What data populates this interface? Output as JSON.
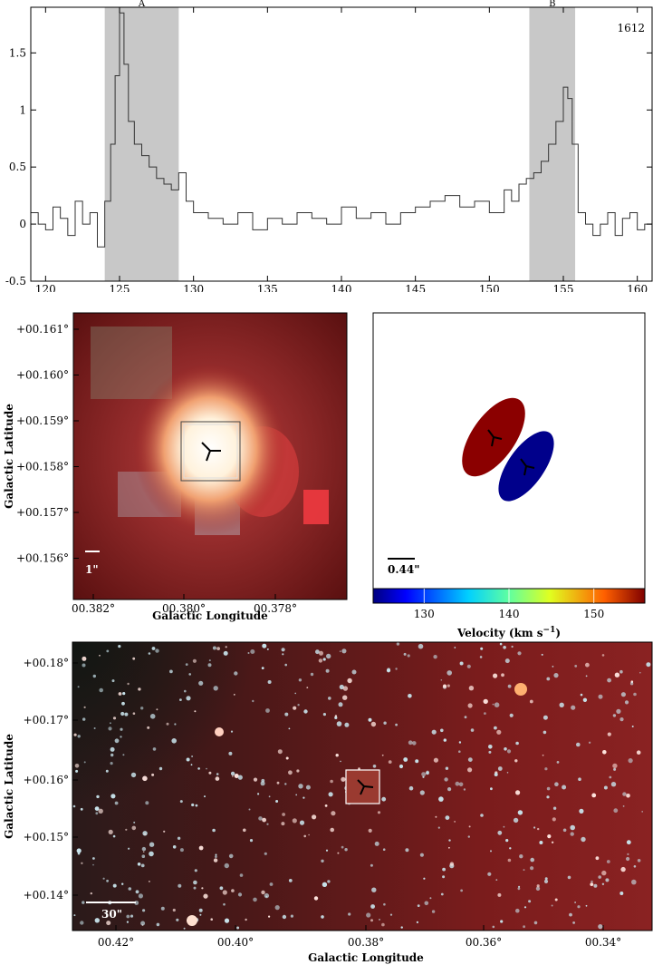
{
  "chart_data": [
    {
      "type": "line",
      "panel": "spectrum",
      "xlim": [
        119,
        161
      ],
      "ylim": [
        -0.5,
        1.9
      ],
      "xticks": [
        "120",
        "125",
        "130",
        "135",
        "140",
        "145",
        "150",
        "155",
        "160"
      ],
      "yticks": [
        "-0.5",
        "0",
        "0.5",
        "1",
        "1.5"
      ],
      "annotation": "1612",
      "regions": [
        {
          "label": "A",
          "from": 124.0,
          "to": 129.0
        },
        {
          "label": "B",
          "from": 152.7,
          "to": 155.8
        }
      ],
      "x": [
        119.0,
        119.5,
        120.0,
        120.5,
        121.0,
        121.5,
        122.0,
        122.5,
        123.0,
        123.5,
        124.0,
        124.4,
        124.7,
        125.0,
        125.3,
        125.6,
        126.0,
        126.5,
        127.0,
        127.5,
        128.0,
        128.5,
        129.0,
        129.5,
        130.0,
        131.0,
        132.0,
        133.0,
        134.0,
        135.0,
        136.0,
        137.0,
        138.0,
        139.0,
        140.0,
        141.0,
        142.0,
        143.0,
        144.0,
        145.0,
        146.0,
        147.0,
        148.0,
        149.0,
        150.0,
        151.0,
        151.5,
        152.0,
        152.5,
        153.0,
        153.5,
        154.0,
        154.5,
        155.0,
        155.3,
        155.6,
        156.0,
        156.5,
        157.0,
        157.5,
        158.0,
        158.5,
        159.0,
        159.5,
        160.0,
        160.5,
        161.0
      ],
      "y": [
        0.1,
        0.0,
        -0.05,
        0.15,
        0.05,
        -0.1,
        0.2,
        0.0,
        0.1,
        -0.2,
        0.2,
        0.7,
        1.3,
        1.85,
        1.4,
        0.9,
        0.7,
        0.6,
        0.5,
        0.4,
        0.35,
        0.3,
        0.45,
        0.2,
        0.1,
        0.05,
        0.0,
        0.1,
        -0.05,
        0.05,
        0.0,
        0.1,
        0.05,
        0.0,
        0.15,
        0.05,
        0.1,
        0.0,
        0.1,
        0.15,
        0.2,
        0.25,
        0.15,
        0.2,
        0.1,
        0.3,
        0.2,
        0.35,
        0.4,
        0.45,
        0.55,
        0.7,
        0.9,
        1.2,
        1.1,
        0.7,
        0.1,
        0.0,
        -0.1,
        0.0,
        0.1,
        -0.1,
        0.05,
        0.1,
        -0.05,
        0.0,
        0.1
      ]
    },
    {
      "type": "image",
      "panel": "zoom-image",
      "xlabel": "Galactic Longitude",
      "ylabel": "Galactic Latitude",
      "xticks": [
        "00.382°",
        "00.380°",
        "00.378°"
      ],
      "yticks": [
        "+00.161°",
        "+00.160°",
        "+00.159°",
        "+00.158°",
        "+00.157°",
        "+00.156°"
      ],
      "scalebar": "1\""
    },
    {
      "type": "scatter",
      "panel": "velocity-map",
      "scalebar": "0.44\"",
      "colorbar_label": "Velocity (km s",
      "colorbar_sup": "−1",
      "colorbar_label_end": ")",
      "colorbar_ticks": [
        "130",
        "140",
        "150"
      ],
      "colorbar_range": [
        124,
        156
      ],
      "components": [
        {
          "velocity": 154,
          "color": "#8b0000"
        },
        {
          "velocity": 125,
          "color": "#00008b"
        }
      ]
    },
    {
      "type": "image",
      "panel": "wide-image",
      "xlabel": "Galactic Longitude",
      "ylabel": "Galactic Latitude",
      "xticks": [
        "00.42°",
        "00.40°",
        "00.38°",
        "00.36°",
        "00.34°"
      ],
      "yticks": [
        "+00.18°",
        "+00.17°",
        "+00.16°",
        "+00.15°",
        "+00.14°"
      ],
      "scalebar": "30\""
    }
  ]
}
